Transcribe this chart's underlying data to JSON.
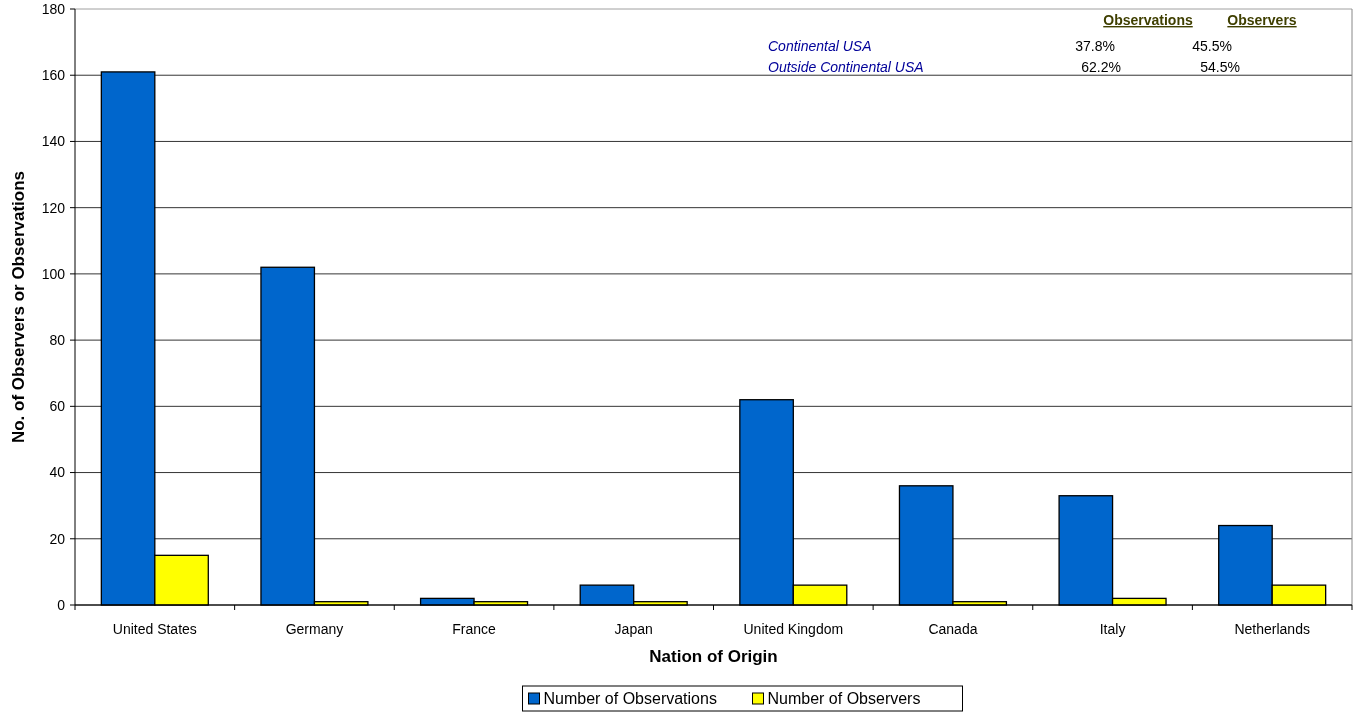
{
  "chart_data": {
    "type": "bar",
    "xlabel": "Nation of Origin",
    "ylabel": "No. of Observers or Observations",
    "categories": [
      "United States",
      "Germany",
      "France",
      "Japan",
      "United Kingdom",
      "Canada",
      "Italy",
      "Netherlands"
    ],
    "series": [
      {
        "name": "Number of Observations",
        "color": "#0066cc",
        "values": [
          161,
          102,
          2,
          6,
          62,
          36,
          33,
          24
        ]
      },
      {
        "name": "Number of Observers",
        "color": "#ffff00",
        "values": [
          15,
          1,
          1,
          1,
          6,
          1,
          2,
          6
        ]
      }
    ],
    "ylim": [
      0,
      180
    ],
    "yticks": [
      0,
      20,
      40,
      60,
      80,
      100,
      120,
      140,
      160,
      180
    ],
    "grid": "y",
    "legend": "bottom",
    "annotations": [
      "Observations",
      "Observers",
      "Continental USA",
      "37.8%",
      "45.5%",
      "Outside Continental USA",
      "62.2%",
      "54.5%"
    ]
  }
}
